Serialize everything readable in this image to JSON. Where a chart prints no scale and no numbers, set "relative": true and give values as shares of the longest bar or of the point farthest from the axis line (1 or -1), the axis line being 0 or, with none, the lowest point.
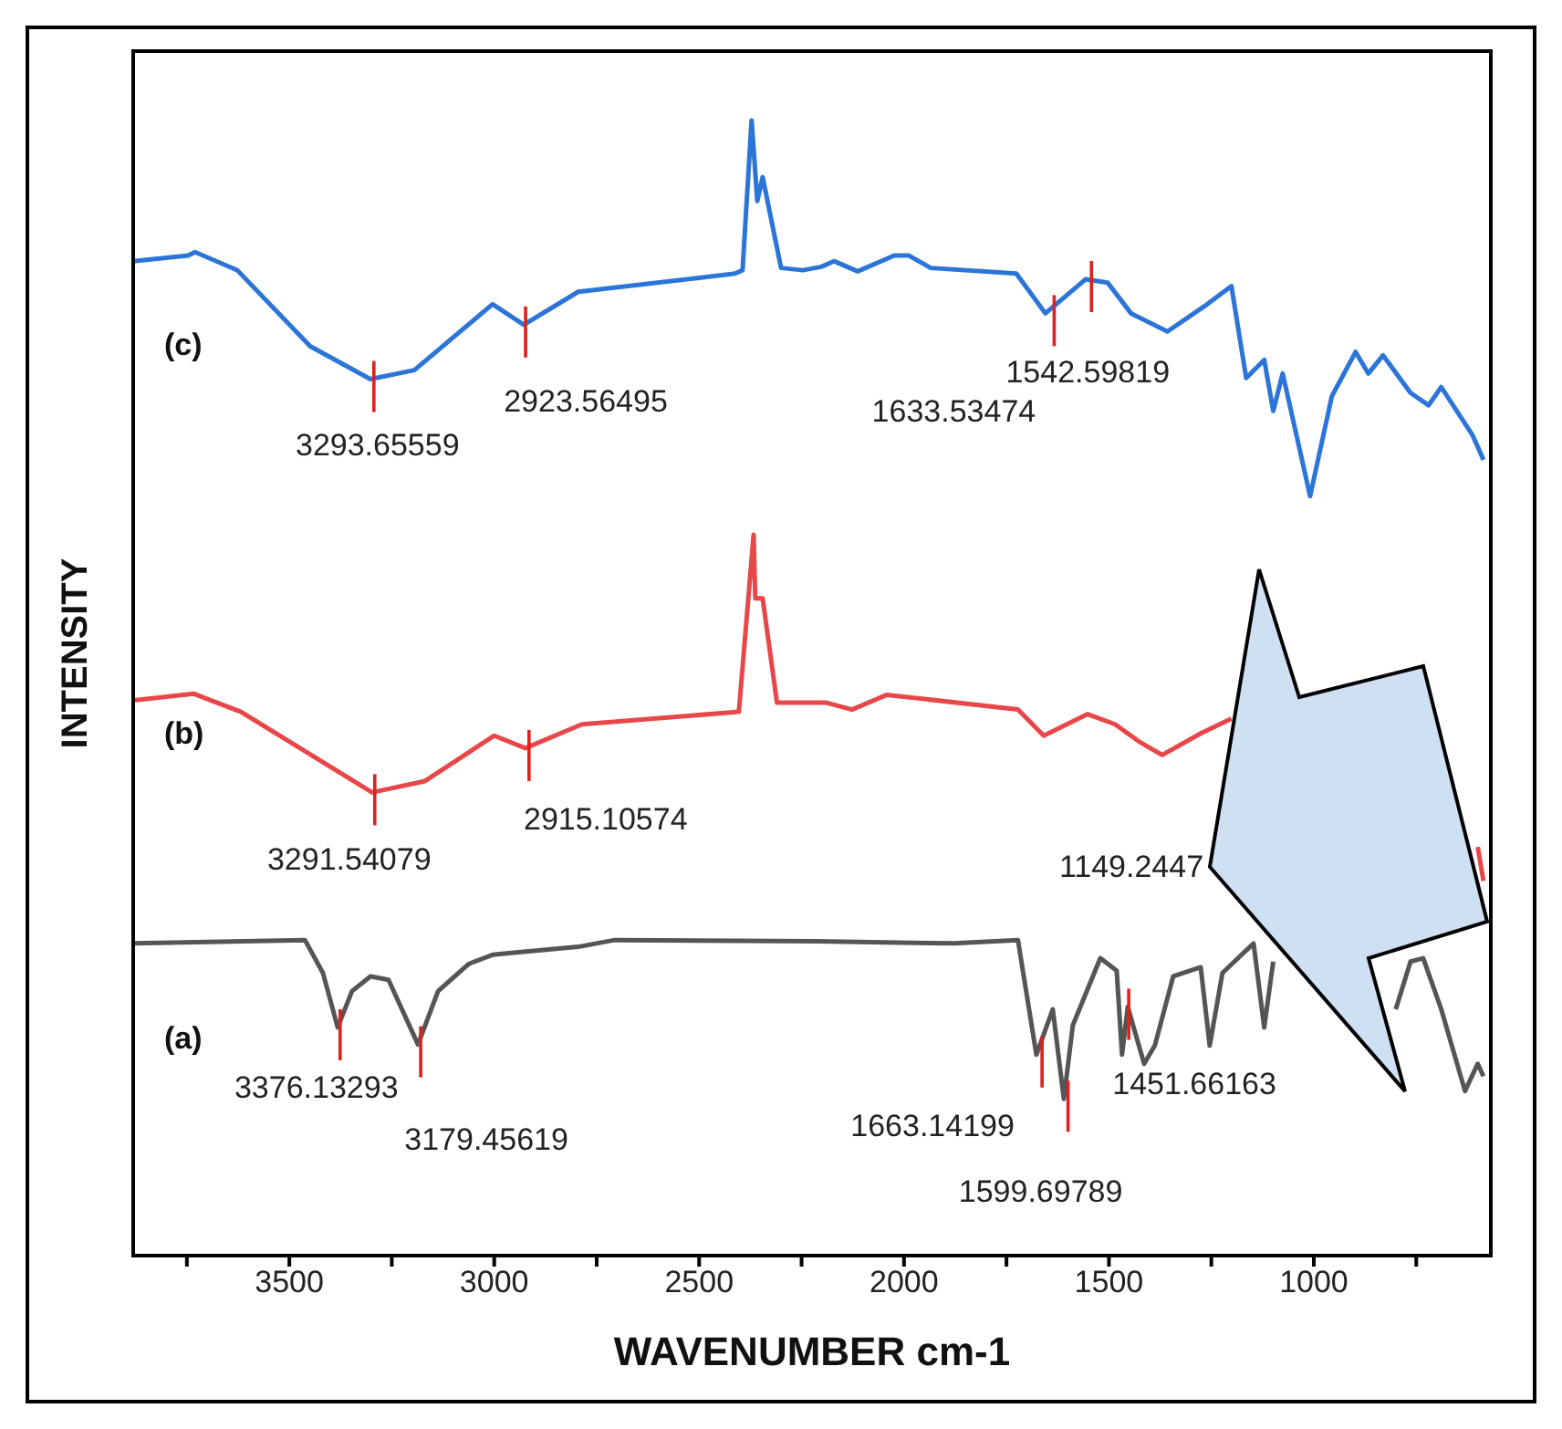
{
  "chart_data": {
    "type": "line",
    "relative": true,
    "xlabel": "WAVENUMBER cm-1",
    "ylabel": "INTENSITY",
    "xlim": [
      3881,
      568
    ],
    "xticks": [
      {
        "value": 3750,
        "label": null
      },
      3500,
      {
        "value": 3250,
        "label": null
      },
      3000,
      {
        "value": 2750,
        "label": null
      },
      2500,
      {
        "value": 2250,
        "label": null
      },
      2000,
      {
        "value": 1750,
        "label": null
      },
      1500,
      {
        "value": 1250,
        "label": null
      },
      1000,
      {
        "value": 750,
        "label": null
      }
    ],
    "series": [
      {
        "name": "(c)",
        "color": "#2b74d8",
        "x": [
          3881,
          3747,
          3730,
          3627,
          3449,
          3302,
          3195,
          3004,
          2928,
          2795,
          2412,
          2394,
          2372,
          2358,
          2345,
          2300,
          2247,
          2202,
          2171,
          2113,
          2024,
          1989,
          1935,
          1726,
          1655,
          1557,
          1503,
          1446,
          1357,
          1268,
          1201,
          1165,
          1121,
          1099,
          1076,
          1009,
          956,
          898,
          867,
          831,
          764,
          720,
          689,
          613,
          586
        ],
        "values": [
          0.876,
          0.881,
          0.884,
          0.868,
          0.801,
          0.772,
          0.78,
          0.838,
          0.82,
          0.849,
          0.865,
          0.868,
          1.0,
          0.929,
          0.95,
          0.87,
          0.868,
          0.871,
          0.876,
          0.867,
          0.881,
          0.881,
          0.87,
          0.865,
          0.83,
          0.86,
          0.857,
          0.83,
          0.814,
          0.836,
          0.854,
          0.773,
          0.789,
          0.744,
          0.777,
          0.669,
          0.757,
          0.796,
          0.777,
          0.793,
          0.76,
          0.749,
          0.765,
          0.723,
          0.701
        ]
      },
      {
        "name": "(b)",
        "color": "#e8474a",
        "x": [
          3881,
          3734,
          3618,
          3298,
          3169,
          3000,
          2924,
          2786,
          2403,
          2367,
          2363,
          2345,
          2310,
          2189,
          2127,
          2042,
          1722,
          1659,
          1552,
          1485,
          1423,
          1370,
          1276,
          1201,
          900,
          600,
          586
        ],
        "values": [
          0.489,
          0.495,
          0.479,
          0.408,
          0.418,
          0.458,
          0.447,
          0.468,
          0.479,
          0.635,
          0.579,
          0.579,
          0.487,
          0.487,
          0.481,
          0.494,
          0.481,
          0.458,
          0.477,
          0.468,
          0.452,
          0.441,
          0.46,
          0.473,
          null,
          0.36,
          0.33
        ]
      },
      {
        "name": "(a)",
        "color": "#555555",
        "x": [
          3881,
          3462,
          3418,
          3382,
          3347,
          3302,
          3258,
          3186,
          3137,
          3062,
          3004,
          2946,
          2795,
          2706,
          2216,
          1877,
          1722,
          1677,
          1637,
          1610,
          1588,
          1521,
          1481,
          1468,
          1454,
          1414,
          1388,
          1343,
          1276,
          1254,
          1223,
          1147,
          1121,
          1099,
          1076,
          800,
          764,
          733,
          689,
          631,
          600,
          586
        ],
        "values": [
          0.275,
          0.278,
          0.249,
          0.201,
          0.233,
          0.246,
          0.243,
          0.186,
          0.233,
          0.257,
          0.265,
          0.267,
          0.272,
          0.278,
          0.277,
          0.275,
          0.278,
          0.177,
          0.217,
          0.138,
          0.203,
          0.262,
          0.251,
          0.177,
          0.219,
          0.169,
          0.185,
          0.246,
          0.254,
          0.185,
          0.249,
          0.275,
          0.201,
          0.259,
          null,
          0.217,
          0.259,
          0.262,
          0.217,
          0.145,
          0.169,
          0.158
        ]
      }
    ],
    "annotations": [
      {
        "text": "3293.65559",
        "x": 3293.66,
        "y": 0.772
      },
      {
        "text": "2923.56495",
        "x": 2923.56,
        "y": 0.82
      },
      {
        "text": "1633.53474",
        "x": 1633.53,
        "y": 0.83
      },
      {
        "text": "1542.59819",
        "x": 1542.6,
        "y": 0.86
      },
      {
        "text": "3291.54079",
        "x": 3291.54,
        "y": 0.408
      },
      {
        "text": "2915.10574",
        "x": 2915.11,
        "y": 0.447
      },
      "1149.2447",
      {
        "text": "3376.13293",
        "x": 3376.13,
        "y": 0.201
      },
      {
        "text": "3179.45619",
        "x": 3179.46,
        "y": 0.186
      },
      {
        "text": "1663.14199",
        "x": 1663.14,
        "y": 0.177
      },
      {
        "text": "1599.69789",
        "x": 1599.7,
        "y": 0.138
      },
      {
        "text": "1451.66163",
        "x": 1451.66,
        "y": 0.219
      }
    ]
  }
}
